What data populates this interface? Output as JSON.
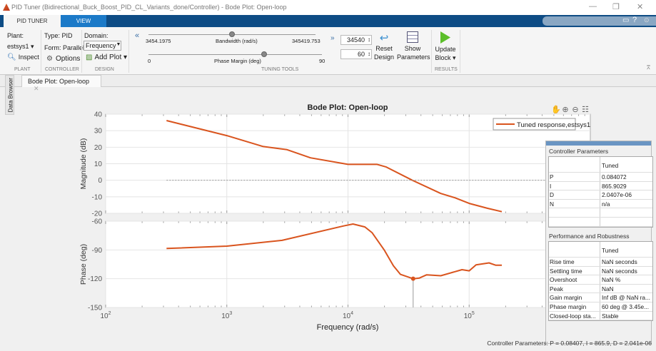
{
  "window": {
    "title": "PID Tuner (Bidirectional_Buck_Boost_PID_CL_Variants_done/Controller) - Bode Plot: Open-loop",
    "controls": [
      "—",
      "❐",
      "✕"
    ]
  },
  "tabs": [
    {
      "label": "PID TUNER",
      "active": true
    },
    {
      "label": "VIEW",
      "active": false
    }
  ],
  "toolstrip": {
    "plant": {
      "label": "Plant:",
      "value": "estsys1 ▾",
      "inspect": "Inspect",
      "group": "PLANT"
    },
    "controller": {
      "type": "Type: PID",
      "form": "Form: Parallel",
      "options": "Options",
      "group": "CONTROLLER"
    },
    "design": {
      "domain_label": "Domain:",
      "domain_value": "Frequency",
      "add_plot": "Add Plot ▾",
      "group": "DESIGN"
    },
    "tuning": {
      "bandwidth_min": "3454.1975",
      "bandwidth_label": "Bandwidth (rad/s)",
      "bandwidth_max": "345419.753",
      "bandwidth_value": "34540",
      "bandwidth_fraction": 0.5,
      "pm_min": "0",
      "pm_label": "Phase Margin (deg)",
      "pm_max": "90",
      "pm_value": "60",
      "pm_fraction": 0.667,
      "group": "TUNING TOOLS"
    },
    "reset": "Reset Design",
    "show_params": "Show Parameters",
    "update": "Update Block ▾",
    "results_group": "RESULTS"
  },
  "doc_tab": {
    "label": "Bode Plot: Open-loop",
    "close": "✕"
  },
  "side_tab": "Data Browser",
  "colors": {
    "accent": "#0e4c85",
    "curve": "#d9541e",
    "update_green": "#5cbf2a"
  },
  "chart_data": {
    "type": "line",
    "title": "Bode Plot: Open-loop",
    "xlabel": "Frequency  (rad/s)",
    "xscale": "log",
    "xlim": [
      100,
      1000000
    ],
    "xticks": [
      {
        "base": "10",
        "exp": "2"
      },
      {
        "base": "10",
        "exp": "3"
      },
      {
        "base": "10",
        "exp": "4"
      },
      {
        "base": "10",
        "exp": "5"
      }
    ],
    "legend": {
      "label": "Tuned response,estsys1",
      "placement": "top-right"
    },
    "grid": true,
    "magnitude": {
      "ylabel": "Magnitude (dB)",
      "ylim": [
        -20,
        40
      ],
      "yticks": [
        "40",
        "30",
        "20",
        "10",
        "0",
        "-10",
        "-20"
      ],
      "x": [
        318,
        1000,
        2000,
        3140,
        4900,
        10000,
        17400,
        20700,
        34000,
        58300,
        76300,
        100000,
        142000,
        186000
      ],
      "y": [
        36.1,
        27,
        20.4,
        18.5,
        13.6,
        9.6,
        9.6,
        8,
        0,
        -8,
        -10.6,
        -14,
        -17,
        -19
      ]
    },
    "phase": {
      "ylabel": "Phase (deg)",
      "ylim": [
        -150,
        -60
      ],
      "yticks": [
        "-60",
        "-90",
        "-120",
        "-150"
      ],
      "x": [
        318,
        1000,
        2860,
        9200,
        11000,
        13800,
        15800,
        19900,
        23700,
        27100,
        34500,
        38900,
        44600,
        58300,
        87300,
        100000,
        114000,
        146000,
        166000,
        186000
      ],
      "y": [
        -88.5,
        -86,
        -80,
        -65,
        -63,
        -66,
        -72,
        -90,
        -106.5,
        -115.5,
        -120,
        -119.3,
        -115.9,
        -116.9,
        -110.6,
        -111.8,
        -105.5,
        -103.5,
        -106,
        -106
      ]
    },
    "marker": {
      "x": 34500,
      "y": -120
    }
  },
  "controller_params": {
    "title": "Controller Parameters",
    "col": "Tuned",
    "rows": [
      [
        "P",
        "0.084072"
      ],
      [
        "I",
        "865.9029"
      ],
      [
        "D",
        "2.0407e-06"
      ],
      [
        "N",
        "n/a"
      ],
      [
        "",
        ""
      ],
      [
        "",
        ""
      ]
    ]
  },
  "performance": {
    "title": "Performance and Robustness",
    "col": "Tuned",
    "rows": [
      [
        "Rise time",
        "NaN seconds"
      ],
      [
        "Settling time",
        "NaN seconds"
      ],
      [
        "Overshoot",
        "NaN %"
      ],
      [
        "Peak",
        "NaN"
      ],
      [
        "Gain margin",
        "Inf dB @ NaN ra..."
      ],
      [
        "Phase margin",
        "60 deg @ 3.45e..."
      ],
      [
        "Closed-loop sta...",
        "Stable"
      ]
    ]
  },
  "status": "Controller Parameters: P = 0.08407, I = 865.9, D = 2.041e-06"
}
